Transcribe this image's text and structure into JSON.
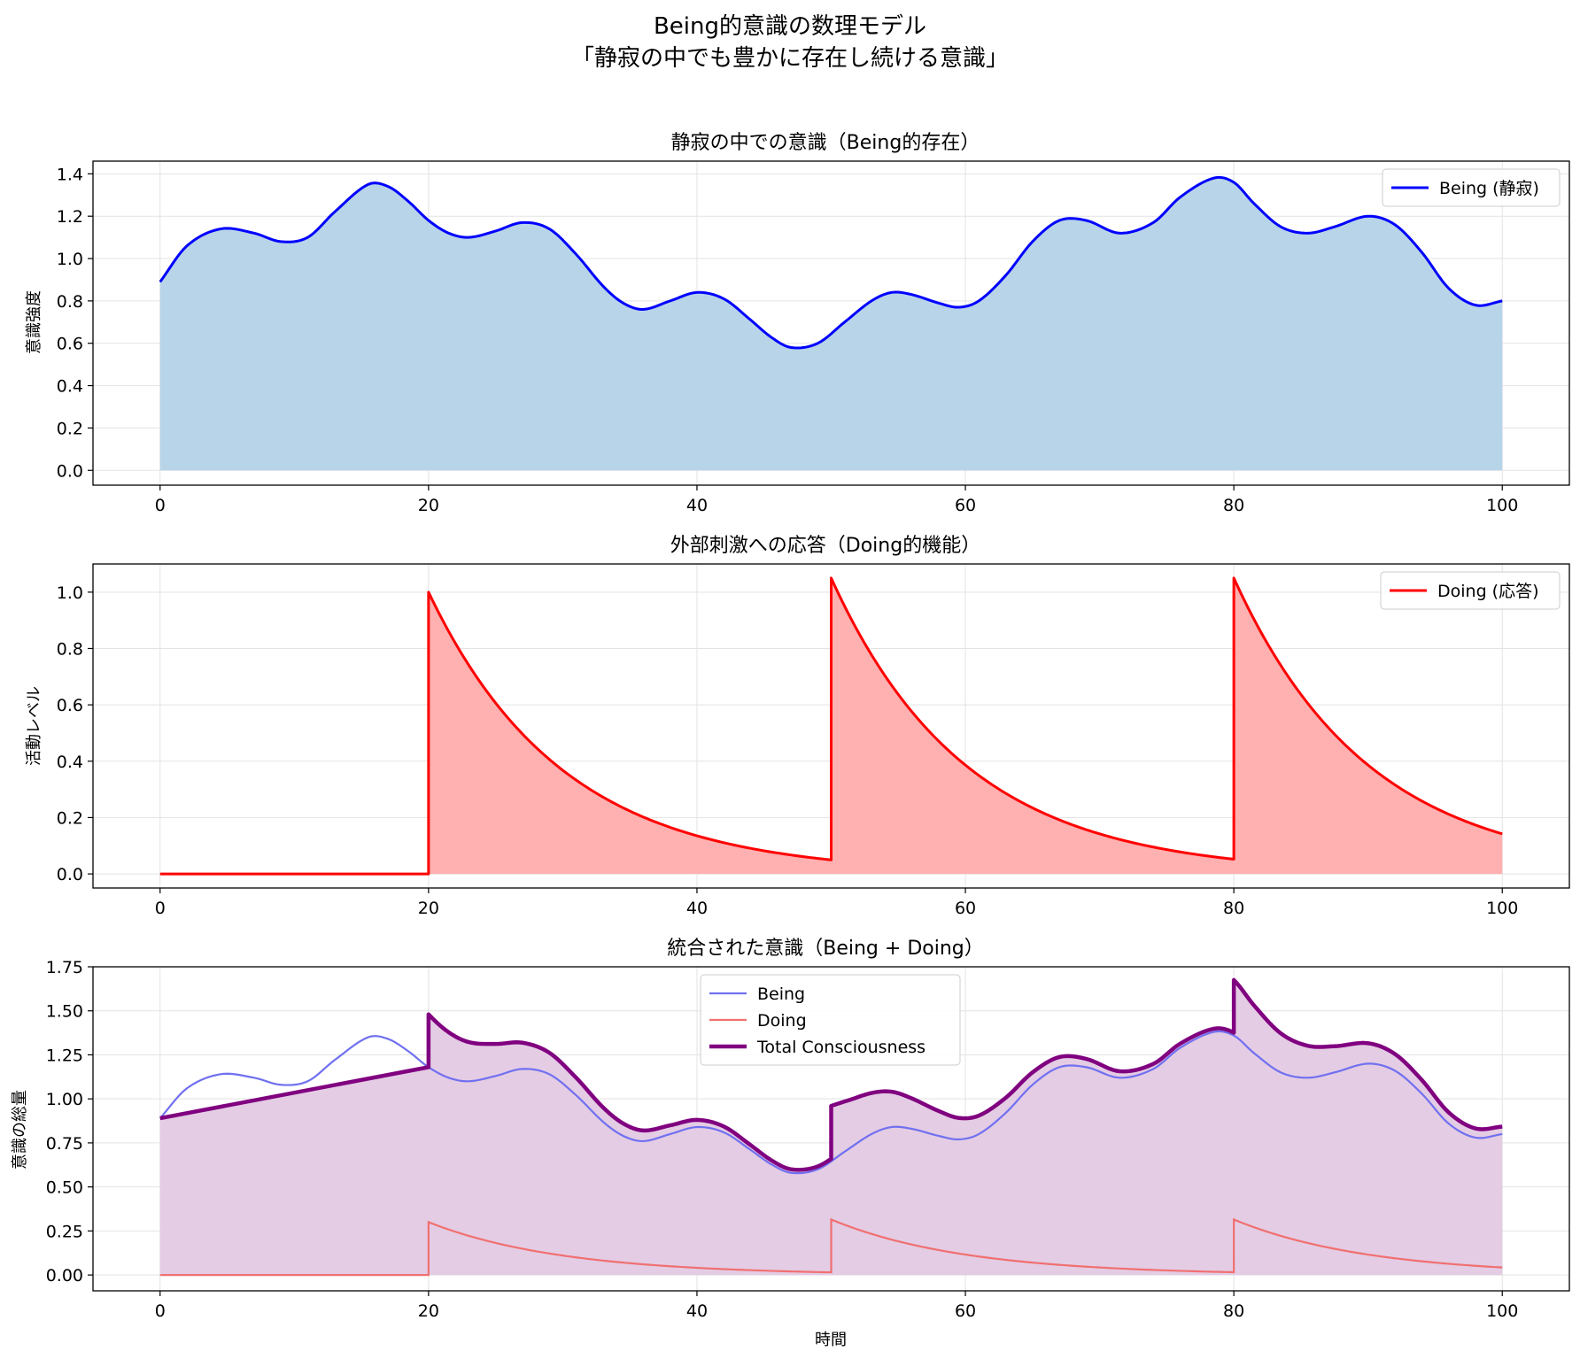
{
  "figure": {
    "suptitle_line1": "Being的意識の数理モデル",
    "suptitle_line2": "「静寂の中でも豊かに存在し続ける意識」"
  },
  "colors": {
    "being": "#0000ff",
    "being_fill": "#b8d4e8",
    "doing": "#ff0000",
    "doing_fill": "#ffb0b0",
    "being_light": "#7070f0",
    "doing_light": "#f07070",
    "total": "#800080",
    "total_fill": "#e4cce4"
  },
  "chart_data": [
    {
      "type": "area",
      "title": "静寂の中での意識（Being的存在）",
      "xlabel": "",
      "ylabel": "意識強度",
      "xlim": [
        -5,
        105
      ],
      "ylim": [
        -0.07,
        1.46
      ],
      "xticks": [
        0,
        20,
        40,
        60,
        80,
        100
      ],
      "yticks": [
        0.0,
        0.2,
        0.4,
        0.6,
        0.8,
        1.0,
        1.2,
        1.4
      ],
      "ytick_labels": [
        "0.0",
        "0.2",
        "0.4",
        "0.6",
        "0.8",
        "1.0",
        "1.2",
        "1.4"
      ],
      "grid": true,
      "legend_position": "upper-right",
      "series": [
        {
          "name": "Being (静寂)",
          "x": [
            0,
            2,
            4.5,
            7,
            9,
            11,
            13,
            15.5,
            17,
            18.5,
            20,
            21.5,
            23,
            25,
            27,
            29,
            31,
            33,
            34.5,
            36,
            38,
            40,
            42,
            44,
            45.5,
            47,
            49,
            51,
            53,
            54.5,
            56,
            58,
            59.5,
            61,
            63,
            65,
            67,
            69,
            71.5,
            74,
            76,
            78.5,
            80,
            81.5,
            83.5,
            85.5,
            87.5,
            90,
            92,
            94,
            96,
            98,
            100
          ],
          "values": [
            0.89,
            1.06,
            1.14,
            1.12,
            1.08,
            1.1,
            1.22,
            1.35,
            1.34,
            1.27,
            1.18,
            1.12,
            1.1,
            1.13,
            1.17,
            1.14,
            1.02,
            0.87,
            0.79,
            0.76,
            0.8,
            0.84,
            0.81,
            0.71,
            0.63,
            0.58,
            0.6,
            0.7,
            0.8,
            0.84,
            0.83,
            0.79,
            0.77,
            0.8,
            0.92,
            1.08,
            1.18,
            1.18,
            1.12,
            1.17,
            1.29,
            1.38,
            1.36,
            1.26,
            1.15,
            1.12,
            1.15,
            1.2,
            1.16,
            1.03,
            0.86,
            0.78,
            0.8
          ]
        }
      ]
    },
    {
      "type": "area",
      "title": "外部刺激への応答（Doing的機能）",
      "xlabel": "",
      "ylabel": "活動レベル",
      "xlim": [
        -5,
        105
      ],
      "ylim": [
        -0.05,
        1.1
      ],
      "xticks": [
        0,
        20,
        40,
        60,
        80,
        100
      ],
      "yticks": [
        0.0,
        0.2,
        0.4,
        0.6,
        0.8,
        1.0
      ],
      "ytick_labels": [
        "0.0",
        "0.2",
        "0.4",
        "0.6",
        "0.8",
        "1.0"
      ],
      "grid": true,
      "legend_position": "upper-right",
      "pulses": {
        "starts": [
          20,
          50,
          80
        ],
        "peaks": [
          1.0,
          1.05,
          1.05
        ],
        "decay_per_unit": 0.1,
        "end_x": 100
      },
      "series": [
        {
          "name": "Doing (応答)"
        }
      ]
    },
    {
      "type": "line",
      "title": "統合された意識（Being + Doing）",
      "xlabel": "時間",
      "ylabel": "意識の総量",
      "xlim": [
        -5,
        105
      ],
      "ylim": [
        -0.09,
        1.75
      ],
      "xticks": [
        0,
        20,
        40,
        60,
        80,
        100
      ],
      "yticks": [
        0.0,
        0.25,
        0.5,
        0.75,
        1.0,
        1.25,
        1.5,
        1.75
      ],
      "ytick_labels": [
        "0.00",
        "0.25",
        "0.50",
        "0.75",
        "1.00",
        "1.25",
        "1.50",
        "1.75"
      ],
      "grid": true,
      "legend_position": "upper-center",
      "doing_weight": 0.3,
      "series": [
        {
          "name": "Being"
        },
        {
          "name": "Doing"
        },
        {
          "name": "Total Consciousness"
        }
      ]
    }
  ]
}
